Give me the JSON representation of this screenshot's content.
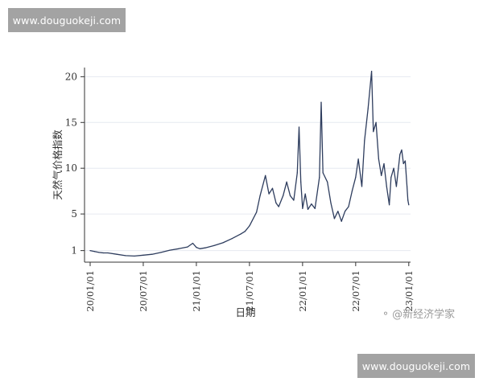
{
  "watermark_top": "www.douguokeji.com",
  "watermark_bottom": "www.douguokeji.com",
  "credit": {
    "icon": "wechat-bubble-icon",
    "text": "@新经济学家"
  },
  "colors": {
    "line": "#2e3d5e",
    "grid": "#e6eaf0",
    "axis": "#333333"
  },
  "chart_data": {
    "type": "line",
    "title": "",
    "xlabel": "日期",
    "ylabel": "天然气价格指数",
    "xlim": [
      0,
      36.2
    ],
    "ylim": [
      0,
      21
    ],
    "x_ticks": [
      0,
      6,
      12,
      18,
      24,
      30,
      36
    ],
    "x_tick_labels": [
      "20/01/01",
      "20/07/01",
      "21/01/01",
      "21/07/01",
      "22/01/01",
      "22/07/01",
      "23/01/01"
    ],
    "y_ticks": [
      1,
      5,
      10,
      15,
      20
    ],
    "y_tick_labels": [
      "1",
      "5",
      "10",
      "15",
      "20"
    ],
    "grid": "horizontal",
    "series": [
      {
        "name": "天然气价格指数",
        "x": [
          0,
          0.5,
          1,
          1.5,
          2,
          3,
          4,
          5,
          6,
          7,
          8,
          9,
          10,
          11,
          11.6,
          12,
          12.4,
          13,
          14,
          15,
          16,
          17,
          17.5,
          18,
          18.8,
          19.2,
          19.8,
          20.2,
          20.6,
          21,
          21.3,
          21.8,
          22.2,
          22.6,
          23,
          23.4,
          23.6,
          23.8,
          24,
          24.3,
          24.6,
          25,
          25.4,
          25.9,
          26.1,
          26.3,
          26.8,
          27.2,
          27.6,
          28,
          28.4,
          28.8,
          29.2,
          29.6,
          30,
          30.3,
          30.7,
          31,
          31.4,
          31.8,
          32,
          32.3,
          32.6,
          32.9,
          33.2,
          33.5,
          33.8,
          34,
          34.3,
          34.6,
          35,
          35.2,
          35.4,
          35.6,
          35.8,
          35.9,
          36
        ],
        "values": [
          1.0,
          0.9,
          0.8,
          0.75,
          0.75,
          0.6,
          0.45,
          0.4,
          0.5,
          0.6,
          0.8,
          1.05,
          1.2,
          1.4,
          1.8,
          1.35,
          1.2,
          1.3,
          1.55,
          1.85,
          2.3,
          2.8,
          3.1,
          3.7,
          5.2,
          7.0,
          9.2,
          7.2,
          7.8,
          6.2,
          5.8,
          7.0,
          8.5,
          7.0,
          6.5,
          9.5,
          14.5,
          8.5,
          5.6,
          7.2,
          5.5,
          6.1,
          5.6,
          9.0,
          17.2,
          9.5,
          8.5,
          6.2,
          4.5,
          5.3,
          4.2,
          5.3,
          5.8,
          7.5,
          9.0,
          11.0,
          8.0,
          13.0,
          16.5,
          20.6,
          14.0,
          15.0,
          11.0,
          9.2,
          10.5,
          8.0,
          6.0,
          9.0,
          10.0,
          8.0,
          11.5,
          12.0,
          10.5,
          10.8,
          8.0,
          6.5,
          6.0
        ]
      }
    ]
  }
}
